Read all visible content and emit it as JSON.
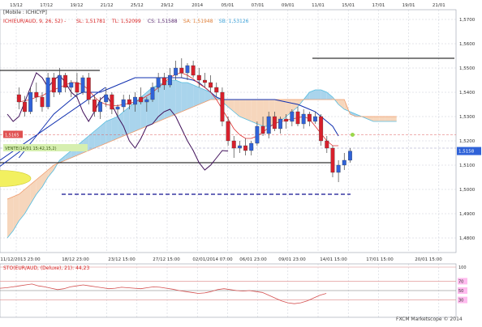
{
  "colors": {
    "bg": "#ffffff",
    "grid": "#c8ccd6",
    "axis": "#7a7f8c",
    "tenkan": "#e03030",
    "kijun": "#1030b0",
    "chikou": "#40105a",
    "kumo_bull": "#a9d4ec",
    "kumo_bear": "#f6d6bc",
    "span_a": "#55bde0",
    "span_b": "#f09a6a",
    "candle_up": "#2f62d8",
    "candle_down": "#d8202c",
    "stoch": "#d45050",
    "lines_black": "#000000",
    "dashed": "#101090"
  },
  "chart_data": {
    "type": "candlestick",
    "title": "[Mobile : ICHICYP]",
    "indicator_label": "ICH(EUR/AUD, 9, 26, 52) -",
    "indicator_values": [
      {
        "label": "SL: 1,51781",
        "color": "#d82020"
      },
      {
        "label": "TL: 1,52099",
        "color": "#d82020"
      },
      {
        "label": "CS: 1,51588",
        "color": "#5a2a70"
      },
      {
        "label": "SA: 1,51948",
        "color": "#e0803a"
      },
      {
        "label": "SB: 1,53126",
        "color": "#3aa0d8"
      }
    ],
    "top_dates": [
      "13/12",
      "17/12",
      "19/12",
      "21/12",
      "25/12",
      "29/12",
      "2014",
      "05/01",
      "07/01",
      "09/01",
      "11/01",
      "15/01",
      "17/01",
      "19/01",
      "21/01"
    ],
    "bottom_dates": [
      "11/12/2013 23:00",
      "18/12 23:00",
      "23/12 15:00",
      "27/12 15:00",
      "02/01/2014 07:00",
      "06/01 23:00",
      "09/01 23:00",
      "14/01 15:00",
      "17/01 15:00",
      "20/01 15:00"
    ],
    "y_ticks": [
      "1,5700",
      "1,5600",
      "1,5500",
      "1,5400",
      "1,5300",
      "1,5200",
      "1,5100",
      "1,5000",
      "1,4900",
      "1,4800"
    ],
    "ylim": [
      1.474,
      1.574
    ],
    "price_label": "1,5158",
    "price": 1.5158,
    "tag_left_1": "1,5165",
    "tag_left_2": "VENTE(14/01 15:42,15,2)",
    "candles": [
      [
        1.539,
        1.542,
        1.533,
        1.536
      ],
      [
        1.536,
        1.5385,
        1.53,
        1.532
      ],
      [
        1.532,
        1.542,
        1.531,
        1.54
      ],
      [
        1.54,
        1.544,
        1.536,
        1.538
      ],
      [
        1.538,
        1.54,
        1.532,
        1.534
      ],
      [
        1.534,
        1.548,
        1.533,
        1.546
      ],
      [
        1.546,
        1.548,
        1.538,
        1.54
      ],
      [
        1.54,
        1.55,
        1.539,
        1.547
      ],
      [
        1.547,
        1.548,
        1.54,
        1.542
      ],
      [
        1.542,
        1.545,
        1.538,
        1.544
      ],
      [
        1.544,
        1.548,
        1.538,
        1.54
      ],
      [
        1.54,
        1.547,
        1.539,
        1.546
      ],
      [
        1.546,
        1.548,
        1.535,
        1.537
      ],
      [
        1.537,
        1.539,
        1.53,
        1.532
      ],
      [
        1.532,
        1.538,
        1.529,
        1.536
      ],
      [
        1.536,
        1.542,
        1.534,
        1.539
      ],
      [
        1.539,
        1.54,
        1.531,
        1.533
      ],
      [
        1.533,
        1.535,
        1.53,
        1.534
      ],
      [
        1.534,
        1.539,
        1.532,
        1.537
      ],
      [
        1.537,
        1.539,
        1.533,
        1.535
      ],
      [
        1.535,
        1.54,
        1.532,
        1.538
      ],
      [
        1.538,
        1.542,
        1.535,
        1.536
      ],
      [
        1.536,
        1.538,
        1.532,
        1.537
      ],
      [
        1.537,
        1.544,
        1.536,
        1.542
      ],
      [
        1.542,
        1.548,
        1.54,
        1.546
      ],
      [
        1.546,
        1.548,
        1.541,
        1.543
      ],
      [
        1.543,
        1.55,
        1.542,
        1.547
      ],
      [
        1.547,
        1.553,
        1.545,
        1.55
      ],
      [
        1.55,
        1.554,
        1.546,
        1.548
      ],
      [
        1.548,
        1.552,
        1.545,
        1.551
      ],
      [
        1.551,
        1.553,
        1.546,
        1.547
      ],
      [
        1.547,
        1.55,
        1.542,
        1.545
      ],
      [
        1.545,
        1.548,
        1.542,
        1.544
      ],
      [
        1.544,
        1.547,
        1.54,
        1.542
      ],
      [
        1.542,
        1.544,
        1.538,
        1.54
      ],
      [
        1.54,
        1.542,
        1.526,
        1.528
      ],
      [
        1.528,
        1.53,
        1.518,
        1.52
      ],
      [
        1.52,
        1.522,
        1.513,
        1.517
      ],
      [
        1.517,
        1.52,
        1.515,
        1.518
      ],
      [
        1.518,
        1.521,
        1.514,
        1.516
      ],
      [
        1.516,
        1.52,
        1.514,
        1.519
      ],
      [
        1.519,
        1.528,
        1.518,
        1.526
      ],
      [
        1.526,
        1.53,
        1.522,
        1.523
      ],
      [
        1.523,
        1.532,
        1.521,
        1.53
      ],
      [
        1.53,
        1.532,
        1.524,
        1.525
      ],
      [
        1.525,
        1.53,
        1.523,
        1.529
      ],
      [
        1.529,
        1.531,
        1.525,
        1.528
      ],
      [
        1.528,
        1.533,
        1.526,
        1.532
      ],
      [
        1.532,
        1.534,
        1.526,
        1.527
      ],
      [
        1.527,
        1.533,
        1.525,
        1.531
      ],
      [
        1.531,
        1.532,
        1.526,
        1.528
      ],
      [
        1.528,
        1.532,
        1.527,
        1.53
      ],
      [
        1.53,
        1.531,
        1.518,
        1.52
      ],
      [
        1.52,
        1.522,
        1.515,
        1.517
      ],
      [
        1.517,
        1.518,
        1.505,
        1.507
      ],
      [
        1.507,
        1.512,
        1.503,
        1.51
      ],
      [
        1.51,
        1.515,
        1.508,
        1.512
      ],
      [
        1.512,
        1.517,
        1.511,
        1.5158
      ]
    ],
    "tenkan": [
      1.536,
      1.5365,
      1.537,
      1.538,
      1.5385,
      1.54,
      1.541,
      1.542,
      1.543,
      1.544,
      1.544,
      1.543,
      1.541,
      1.538,
      1.536,
      1.535,
      1.5345,
      1.5345,
      1.535,
      1.5355,
      1.536,
      1.537,
      1.5385,
      1.54,
      1.542,
      1.544,
      1.546,
      1.5475,
      1.548,
      1.547,
      1.5455,
      1.5435,
      1.542,
      1.54,
      1.537,
      1.533,
      1.529,
      1.525,
      1.5225,
      1.521,
      1.521,
      1.522,
      1.5235,
      1.5255,
      1.527,
      1.528,
      1.5285,
      1.529,
      1.5295,
      1.53,
      1.529,
      1.526,
      1.523,
      1.52,
      1.518,
      1.518
    ],
    "kijun": [
      1.513,
      1.516,
      1.519,
      1.522,
      1.525,
      1.528,
      1.531,
      1.533,
      1.535,
      1.537,
      1.539,
      1.54,
      1.54,
      1.54,
      1.54,
      1.541,
      1.542,
      1.543,
      1.544,
      1.545,
      1.546,
      1.546,
      1.546,
      1.546,
      1.546,
      1.546,
      1.546,
      1.546,
      1.546,
      1.5455,
      1.545,
      1.544,
      1.542,
      1.54,
      1.538,
      1.537,
      1.537,
      1.537,
      1.537,
      1.537,
      1.537,
      1.537,
      1.537,
      1.537,
      1.537,
      1.5365,
      1.536,
      1.5355,
      1.535,
      1.534,
      1.533,
      1.532,
      1.53,
      1.528,
      1.526,
      1.522
    ],
    "span_a": [
      1.48,
      1.483,
      1.487,
      1.49,
      1.494,
      1.498,
      1.501,
      1.505,
      1.508,
      1.512,
      1.514,
      1.516,
      1.518,
      1.52,
      1.522,
      1.524,
      1.526,
      1.528,
      1.529,
      1.53,
      1.532,
      1.534,
      1.536,
      1.538,
      1.54,
      1.542,
      1.543,
      1.544,
      1.545,
      1.545,
      1.544,
      1.544,
      1.543,
      1.542,
      1.541,
      1.54,
      1.538,
      1.536,
      1.534,
      1.532,
      1.53,
      1.529,
      1.528,
      1.527,
      1.526,
      1.526,
      1.527,
      1.528,
      1.53,
      1.532,
      1.534,
      1.537,
      1.54,
      1.541,
      1.541,
      1.54,
      1.538,
      1.535,
      1.533,
      1.532,
      1.531,
      1.53,
      1.529,
      1.528,
      1.528,
      1.528,
      1.528,
      1.528
    ],
    "span_b": [
      1.496,
      1.497,
      1.498,
      1.5,
      1.502,
      1.504,
      1.506,
      1.508,
      1.51,
      1.511,
      1.512,
      1.513,
      1.514,
      1.515,
      1.516,
      1.517,
      1.518,
      1.519,
      1.52,
      1.521,
      1.522,
      1.523,
      1.524,
      1.525,
      1.526,
      1.527,
      1.528,
      1.529,
      1.53,
      1.531,
      1.532,
      1.533,
      1.534,
      1.535,
      1.536,
      1.537,
      1.537,
      1.537,
      1.537,
      1.537,
      1.537,
      1.537,
      1.537,
      1.537,
      1.537,
      1.537,
      1.537,
      1.537,
      1.537,
      1.537,
      1.537,
      1.537,
      1.537,
      1.537,
      1.537,
      1.537,
      1.537,
      1.537,
      1.537,
      1.531,
      1.53,
      1.53,
      1.53,
      1.53,
      1.53,
      1.53,
      1.53,
      1.53
    ],
    "chikou": [
      1.531,
      1.528,
      1.53,
      1.536,
      1.542,
      1.548,
      1.546,
      1.542,
      1.545,
      1.547,
      1.544,
      1.54,
      1.538,
      1.532,
      1.528,
      1.532,
      1.537,
      1.539,
      1.535,
      1.53,
      1.526,
      1.52,
      1.517,
      1.521,
      1.526,
      1.527,
      1.53,
      1.532,
      1.533,
      1.53,
      1.525,
      1.52,
      1.516,
      1.511,
      1.508,
      1.51,
      1.513,
      1.516,
      1.5158
    ],
    "black_lines": [
      1.554,
      1.549,
      1.511
    ],
    "dashed_line": 1.498,
    "stoch_label": "STO(EUR/AUD, (Deluxe), 21): 44,23",
    "stoch_levels": [
      "100",
      "70",
      "50",
      "30"
    ],
    "stoch": [
      55,
      56,
      58,
      60,
      62,
      64,
      60,
      58,
      55,
      52,
      54,
      58,
      60,
      62,
      60,
      58,
      56,
      54,
      55,
      57,
      56,
      55,
      54,
      56,
      58,
      57,
      55,
      53,
      50,
      48,
      46,
      44,
      45,
      48,
      52,
      54,
      52,
      50,
      49,
      50,
      48,
      46,
      40,
      34,
      28,
      24,
      22,
      24,
      28,
      34,
      40,
      44
    ],
    "watermark": "FXCM Marketscope © 2014"
  }
}
